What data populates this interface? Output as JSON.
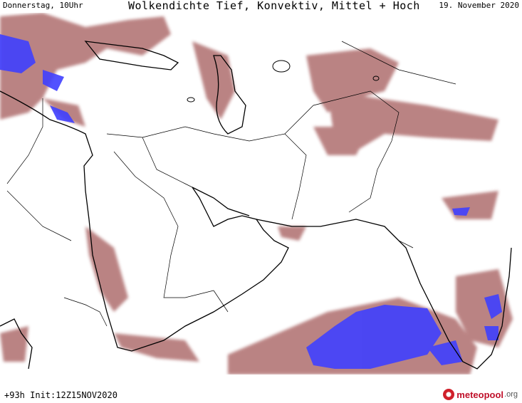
{
  "header": {
    "left": "Donnerstag, 10Uhr",
    "title": "Wolkendichte  Tief, Konvektiv, Mittel + Hoch",
    "date": "19. November 2020"
  },
  "footer": {
    "run": "+93h Init:12Z15NOV2020",
    "brand": "meteopool",
    "tld": ".org"
  },
  "colors": {
    "cloud": "#a45a5a",
    "cloud_dense": "#4040ff",
    "border": "#000000"
  }
}
